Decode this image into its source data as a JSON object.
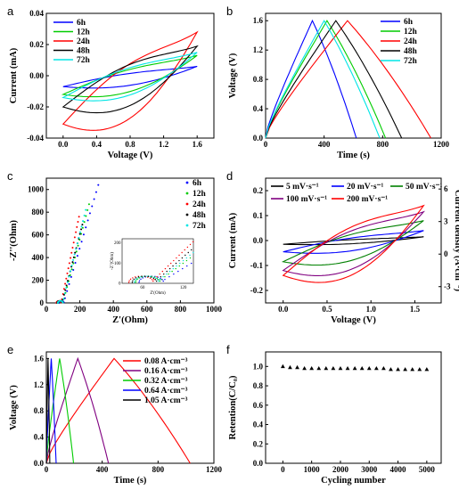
{
  "chart_data": [
    {
      "panel": "a",
      "type": "line",
      "xlabel": "Voltage (V)",
      "ylabel": "Current (mA)",
      "xlim": [
        -0.2,
        1.8
      ],
      "ylim": [
        -0.04,
        0.04
      ],
      "xticks": [
        "0.0",
        "0.4",
        "0.8",
        "1.2",
        "1.6"
      ],
      "yticks": [
        "-0.04",
        "-0.02",
        "0.00",
        "0.02",
        "0.04"
      ],
      "legend": "top-left",
      "series": [
        {
          "name": "6h",
          "color": "#0000ff",
          "cv": [
            0,
            1.6,
            -0.007,
            -0.004,
            0.006,
            0.003
          ]
        },
        {
          "name": "12h",
          "color": "#00cc00",
          "cv": [
            0,
            1.6,
            -0.012,
            -0.007,
            0.013,
            0.006
          ]
        },
        {
          "name": "24h",
          "color": "#ff0000",
          "cv": [
            0,
            1.6,
            -0.031,
            -0.02,
            0.028,
            0.012
          ]
        },
        {
          "name": "48h",
          "color": "#000000",
          "cv": [
            0,
            1.6,
            -0.02,
            -0.014,
            0.019,
            0.01
          ]
        },
        {
          "name": "72h",
          "color": "#00e5e5",
          "cv": [
            0,
            1.6,
            -0.014,
            -0.009,
            0.015,
            0.007
          ]
        }
      ]
    },
    {
      "panel": "b",
      "type": "line",
      "xlabel": "Time (s)",
      "ylabel": "Voltage (V)",
      "xlim": [
        0,
        1200
      ],
      "ylim": [
        0,
        1.7
      ],
      "xticks": [
        "0",
        "400",
        "800",
        "1200"
      ],
      "yticks": [
        "0.0",
        "0.4",
        "0.8",
        "1.2",
        "1.6"
      ],
      "legend": "top-right",
      "series": [
        {
          "name": "6h",
          "color": "#0000ff",
          "gcd": [
            320,
            620
          ]
        },
        {
          "name": "12h",
          "color": "#00cc00",
          "gcd": [
            420,
            820
          ]
        },
        {
          "name": "24h",
          "color": "#ff0000",
          "gcd": [
            560,
            1130
          ]
        },
        {
          "name": "48h",
          "color": "#000000",
          "gcd": [
            480,
            930
          ]
        },
        {
          "name": "72h",
          "color": "#00e5e5",
          "gcd": [
            400,
            780
          ]
        }
      ]
    },
    {
      "panel": "c",
      "type": "scatter",
      "xlabel": "Z'(Ohm)",
      "ylabel": "-Z''(Ohm)",
      "xlim": [
        0,
        1000
      ],
      "ylim": [
        0,
        1100
      ],
      "xticks": [
        "0",
        "200",
        "400",
        "600",
        "800",
        "1000"
      ],
      "yticks": [
        "0",
        "200",
        "400",
        "600",
        "800",
        "1000"
      ],
      "legend": "top-right",
      "series": [
        {
          "name": "6h",
          "color": "#0000ff",
          "nyq": [
            75,
            310,
            1040
          ]
        },
        {
          "name": "12h",
          "color": "#00cc00",
          "nyq": [
            70,
            255,
            870
          ]
        },
        {
          "name": "24h",
          "color": "#ff0000",
          "nyq": [
            60,
            195,
            760
          ]
        },
        {
          "name": "48h",
          "color": "#000000",
          "nyq": [
            65,
            215,
            690
          ]
        },
        {
          "name": "72h",
          "color": "#00e5e5",
          "nyq": [
            68,
            235,
            820
          ]
        }
      ],
      "inset": {
        "xlabel": "Z'(Ohm)",
        "ylabel": "-Z''(Ohm)",
        "xlim": [
          30,
          135
        ],
        "ylim": [
          0,
          220
        ],
        "xticks": [
          "60",
          "120"
        ],
        "yticks": [
          "0",
          "100",
          "200"
        ]
      }
    },
    {
      "panel": "d",
      "type": "line",
      "xlabel": "Voltage (V)",
      "ylabel": "Current (mA)",
      "ylabel_right": "Current density (A·cm⁻³)",
      "xlim": [
        -0.2,
        1.8
      ],
      "ylim": [
        -0.25,
        0.25
      ],
      "xticks": [
        "0.0",
        "0.5",
        "1.0",
        "1.5"
      ],
      "yticks": [
        "-0.2",
        "-0.1",
        "0.0",
        "0.1",
        "0.2"
      ],
      "yticks_right": [
        "-3",
        "0",
        "3",
        "6"
      ],
      "legend": "top",
      "series": [
        {
          "name": "5 mV·s⁻¹",
          "color": "#000000",
          "cv": [
            0,
            1.6,
            -0.015,
            -0.008,
            0.015,
            0.007
          ]
        },
        {
          "name": "20 mV·s⁻¹",
          "color": "#0000ff",
          "cv": [
            0,
            1.6,
            -0.045,
            -0.025,
            0.04,
            0.022
          ]
        },
        {
          "name": "50 mV·s⁻¹",
          "color": "#008000",
          "cv": [
            0,
            1.6,
            -0.085,
            -0.05,
            0.08,
            0.045
          ]
        },
        {
          "name": "100 mV·s⁻¹",
          "color": "#800080",
          "cv": [
            0,
            1.6,
            -0.12,
            -0.075,
            0.115,
            0.065
          ]
        },
        {
          "name": "200 mV·s⁻¹",
          "color": "#ff0000",
          "cv": [
            0,
            1.6,
            -0.14,
            -0.095,
            0.14,
            0.08
          ]
        }
      ]
    },
    {
      "panel": "e",
      "type": "line",
      "xlabel": "Time (s)",
      "ylabel": "Voltage (V)",
      "xlim": [
        0,
        1200
      ],
      "ylim": [
        0,
        1.7
      ],
      "xticks": [
        "0",
        "400",
        "800",
        "1200"
      ],
      "yticks": [
        "0.0",
        "0.4",
        "0.8",
        "1.2",
        "1.6"
      ],
      "legend": "top-right",
      "series": [
        {
          "name": "0.08 A·cm⁻³",
          "color": "#ff0000",
          "gcd": [
            485,
            1030
          ]
        },
        {
          "name": "0.16 A·cm⁻³",
          "color": "#800080",
          "gcd": [
            225,
            445
          ]
        },
        {
          "name": "0.32 A·cm⁻³",
          "color": "#00cc00",
          "gcd": [
            95,
            195
          ]
        },
        {
          "name": "0.64 A·cm⁻³",
          "color": "#0000ff",
          "gcd": [
            35,
            70
          ]
        },
        {
          "name": "1.05 A·cm⁻³",
          "color": "#000000",
          "gcd": [
            12,
            25
          ]
        }
      ]
    },
    {
      "panel": "f",
      "type": "scatter",
      "xlabel": "Cycling number",
      "ylabel": "Retention(C/C₀)",
      "xlim": [
        -600,
        5500
      ],
      "ylim": [
        0,
        1.15
      ],
      "xticks": [
        "0",
        "1000",
        "2000",
        "3000",
        "4000",
        "5000"
      ],
      "yticks": [
        "0.0",
        "0.2",
        "0.4",
        "0.6",
        "0.8",
        "1.0"
      ],
      "series": [
        {
          "name": "",
          "color": "#000000",
          "marker": "triangle",
          "x": [
            0,
            250,
            500,
            750,
            1000,
            1250,
            1500,
            1750,
            2000,
            2250,
            2500,
            2750,
            3000,
            3250,
            3500,
            3750,
            4000,
            4250,
            4500,
            4750,
            5000
          ],
          "y": [
            1.0,
            0.99,
            0.99,
            0.98,
            0.98,
            0.98,
            0.98,
            0.98,
            0.98,
            0.98,
            0.98,
            0.98,
            0.98,
            0.98,
            0.98,
            0.97,
            0.97,
            0.97,
            0.97,
            0.97,
            0.97
          ]
        }
      ]
    }
  ]
}
